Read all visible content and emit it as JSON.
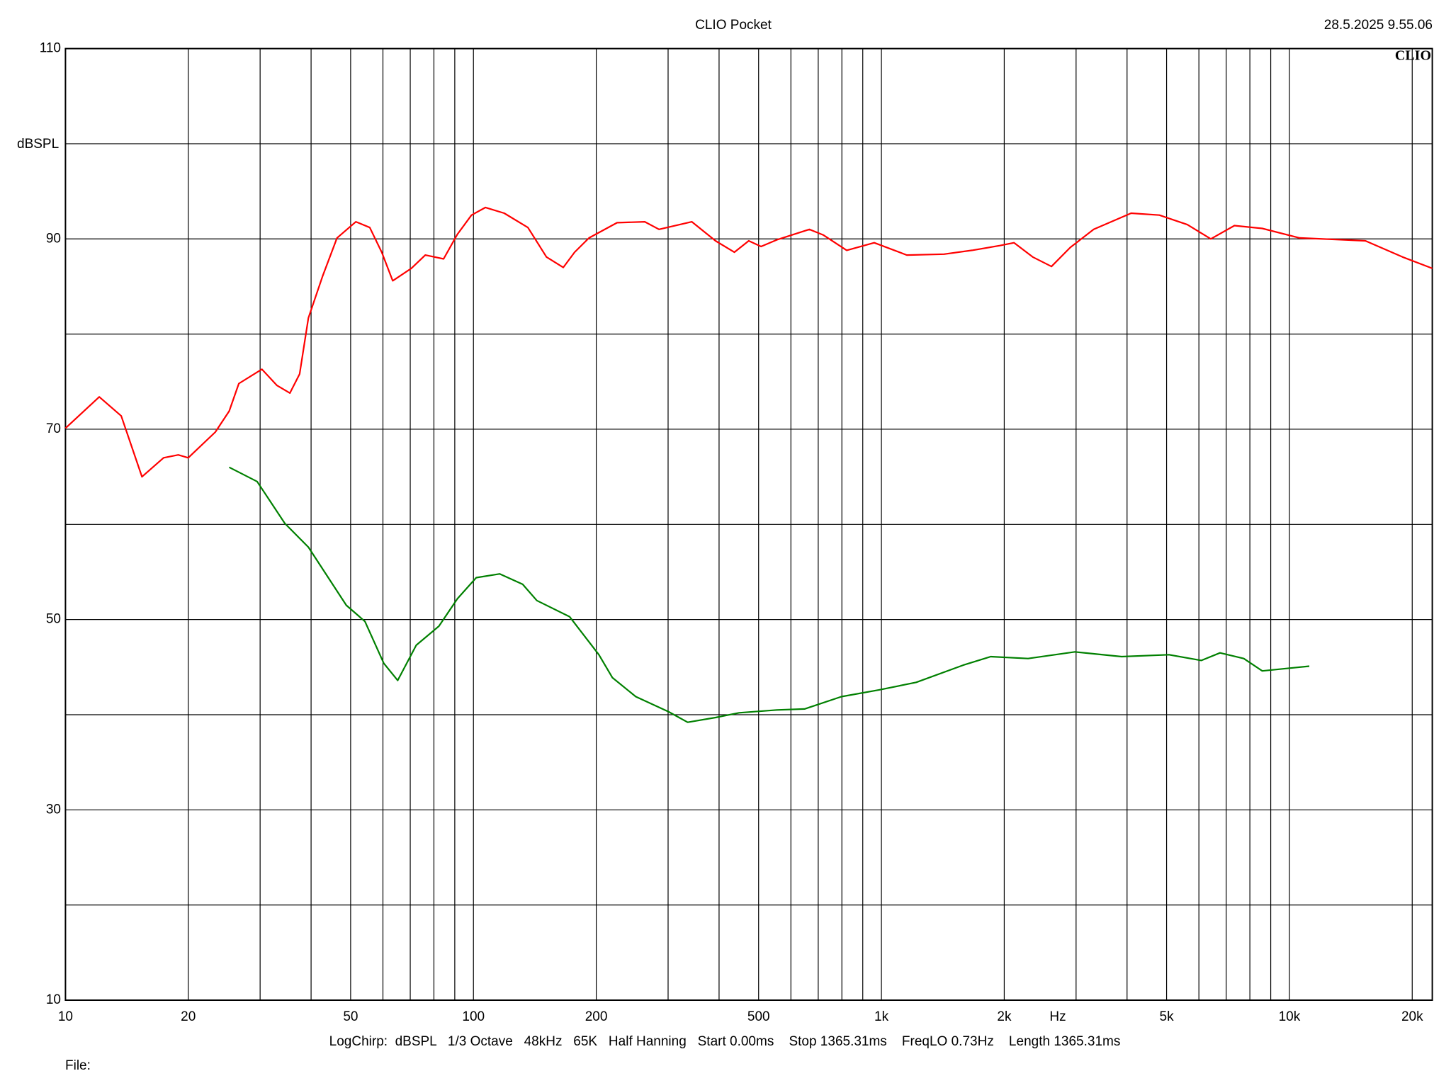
{
  "chart_data": {
    "type": "line",
    "title": "CLIO Pocket",
    "timestamp": "28.5.2025 9.55.06",
    "logo": "CLIO",
    "y_label": "dBSPL",
    "x_label": "Hz",
    "footer": "LogChirp:  dBSPL   1/3 Octave   48kHz   65K   Half Hanning   Start 0.00ms    Stop 1365.31ms    FreqLO 0.73Hz    Length 1365.31ms",
    "file_label": "File:",
    "x_scale": "log",
    "xlim": [
      10,
      22400
    ],
    "ylim": [
      10,
      110
    ],
    "xticks": [
      10,
      20,
      50,
      100,
      200,
      500,
      {
        "value": 1000,
        "label": "1k"
      },
      {
        "value": 2000,
        "label": "2k"
      },
      {
        "value": 5000,
        "label": "5k"
      },
      {
        "value": 10000,
        "label": "10k"
      },
      {
        "value": 20000,
        "label": "20k"
      }
    ],
    "xgrid": [
      10,
      20,
      30,
      40,
      50,
      60,
      70,
      80,
      90,
      100,
      200,
      300,
      400,
      500,
      600,
      700,
      800,
      900,
      1000,
      2000,
      3000,
      4000,
      5000,
      6000,
      7000,
      8000,
      9000,
      10000,
      20000
    ],
    "yticks": [
      10,
      30,
      50,
      70,
      90,
      110
    ],
    "ygrid": [
      10,
      20,
      30,
      40,
      50,
      60,
      70,
      80,
      90,
      100,
      110
    ],
    "series": [
      {
        "color": "#ff0000",
        "x": [
          10,
          12.1,
          13.7,
          15.4,
          17.4,
          18.9,
          20,
          23.3,
          25.2,
          26.6,
          30.3,
          33,
          35.5,
          37.5,
          39.4,
          42.7,
          46.3,
          51.5,
          55.7,
          59.6,
          63.4,
          70.4,
          76.2,
          84.5,
          91.4,
          98.9,
          107,
          119,
          136,
          151,
          166,
          177,
          192,
          225,
          263,
          285,
          343,
          392,
          436,
          473,
          507,
          554,
          666,
          721,
          822,
          960,
          1154,
          1424,
          1668,
          1952,
          2114,
          2349,
          2611,
          2903,
          3314,
          4093,
          4800,
          5620,
          6418,
          7331,
          8579,
          10590,
          15360,
          18940,
          22400
        ],
        "values": [
          70.1,
          73.4,
          71.4,
          65.0,
          67.0,
          67.3,
          67.0,
          69.7,
          71.9,
          74.8,
          76.3,
          74.6,
          73.8,
          75.8,
          81.7,
          86.1,
          90.1,
          91.8,
          91.2,
          88.6,
          85.6,
          86.9,
          88.3,
          87.9,
          90.5,
          92.5,
          93.3,
          92.7,
          91.2,
          88.1,
          87.0,
          88.6,
          90.1,
          91.7,
          91.8,
          91.0,
          91.8,
          89.8,
          88.6,
          89.8,
          89.2,
          89.9,
          91.0,
          90.4,
          88.8,
          89.6,
          88.3,
          88.4,
          88.8,
          89.3,
          89.6,
          88.1,
          87.1,
          89.1,
          91.0,
          92.7,
          92.5,
          91.5,
          90.0,
          91.4,
          91.1,
          90.1,
          89.8,
          88.1,
          86.9
        ]
      },
      {
        "color": "#008000",
        "x": [
          25.2,
          29.5,
          34.5,
          39.4,
          48.8,
          54.2,
          60.3,
          65.2,
          72.4,
          82.3,
          91.4,
          101.6,
          116,
          132,
          143,
          172,
          203,
          219,
          250,
          301,
          335,
          392,
          448,
          554,
          648,
          798,
          985,
          1217,
          1585,
          1852,
          2288,
          2980,
          3880,
          5070,
          6085,
          6760,
          7730,
          8580,
          10050,
          11190
        ],
        "values": [
          66.0,
          64.5,
          60.1,
          57.6,
          51.5,
          49.8,
          45.4,
          43.6,
          47.3,
          49.3,
          52.2,
          54.4,
          54.8,
          53.7,
          52.0,
          50.3,
          46.3,
          43.9,
          41.9,
          40.3,
          39.2,
          39.7,
          40.2,
          40.5,
          40.6,
          41.9,
          42.6,
          43.4,
          45.2,
          46.1,
          45.9,
          46.6,
          46.1,
          46.3,
          45.7,
          46.5,
          45.9,
          44.6,
          44.9,
          45.1
        ]
      }
    ]
  }
}
